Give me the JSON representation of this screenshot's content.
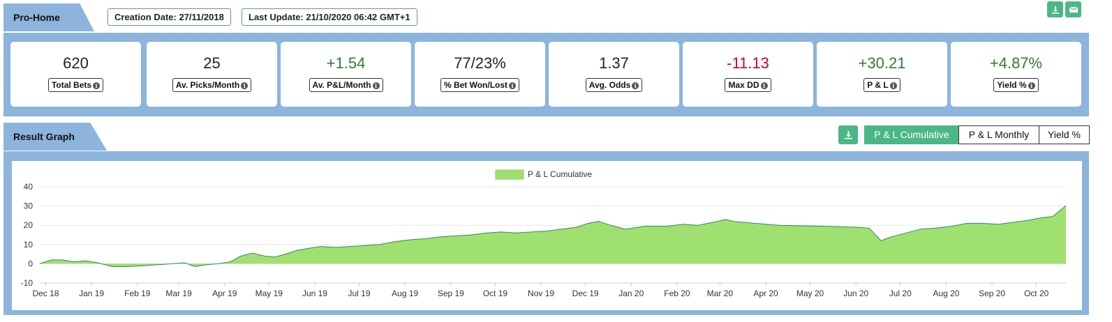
{
  "header": {
    "title": "Pro-Home",
    "creation_date": "Creation Date: 27/11/2018",
    "last_update": "Last Update: 21/10/2020 06:42 GMT+1"
  },
  "icons": {
    "download": "download-icon",
    "email": "envelope-icon",
    "info": "info-circle-icon"
  },
  "stats": [
    {
      "value": "620",
      "label": "Total Bets",
      "color": "#222222"
    },
    {
      "value": "25",
      "label": "Av. Picks/Month",
      "color": "#222222"
    },
    {
      "value": "+1.54",
      "label": "Av. P&L/Month",
      "color": "#2f7d32"
    },
    {
      "value": "77/23%",
      "label": "% Bet Won/Lost",
      "color": "#222222"
    },
    {
      "value": "1.37",
      "label": "Avg. Odds",
      "color": "#222222"
    },
    {
      "value": "-11.13",
      "label": "Max DD",
      "color": "#d0021b"
    },
    {
      "value": "+30.21",
      "label": "P & L",
      "color": "#2f7d32"
    },
    {
      "value": "+4.87%",
      "label": "Yield %",
      "color": "#2f7d32"
    }
  ],
  "graph_section": {
    "title": "Result Graph",
    "toggles": [
      "P & L Cumulative",
      "P & L Monthly",
      "Yield %"
    ],
    "active_toggle": "P & L Cumulative"
  },
  "chart_data": {
    "type": "area",
    "legend": "P & L Cumulative",
    "legend_position": "top-center",
    "fill_color": "#a0e070",
    "line_color": "#2e8b57",
    "ylim": [
      -10,
      40
    ],
    "yticks": [
      "40",
      "30",
      "20",
      "10",
      "0",
      "-10"
    ],
    "xticks": [
      "Dec 18",
      "Jan 19",
      "Feb 19",
      "Mar 19",
      "Apr 19",
      "May 19",
      "Jun 19",
      "Jul 19",
      "Aug 19",
      "Sep 19",
      "Oct 19",
      "Nov 19",
      "Dec 19",
      "Jan 20",
      "Feb 20",
      "Mar 20",
      "Apr 20",
      "May 20",
      "Jun 20",
      "Jul 20",
      "Aug 20",
      "Sep 20",
      "Oct 20"
    ],
    "x": [
      "2018-11-27",
      "2018-12-05",
      "2018-12-12",
      "2018-12-20",
      "2018-12-28",
      "2019-01-05",
      "2019-01-15",
      "2019-01-25",
      "2019-02-05",
      "2019-02-15",
      "2019-02-25",
      "2019-03-05",
      "2019-03-12",
      "2019-03-20",
      "2019-03-28",
      "2019-04-05",
      "2019-04-12",
      "2019-04-20",
      "2019-04-28",
      "2019-05-05",
      "2019-05-12",
      "2019-05-20",
      "2019-05-28",
      "2019-06-05",
      "2019-06-15",
      "2019-06-25",
      "2019-07-05",
      "2019-07-15",
      "2019-07-25",
      "2019-08-05",
      "2019-08-15",
      "2019-08-25",
      "2019-09-05",
      "2019-09-15",
      "2019-09-25",
      "2019-10-05",
      "2019-10-15",
      "2019-10-25",
      "2019-11-05",
      "2019-11-15",
      "2019-11-25",
      "2019-12-03",
      "2019-12-10",
      "2019-12-18",
      "2019-12-28",
      "2020-01-10",
      "2020-01-25",
      "2020-02-05",
      "2020-02-15",
      "2020-02-25",
      "2020-03-05",
      "2020-03-10",
      "2020-04-10",
      "2020-05-10",
      "2020-06-01",
      "2020-06-10",
      "2020-06-18",
      "2020-06-25",
      "2020-07-05",
      "2020-07-15",
      "2020-07-25",
      "2020-08-05",
      "2020-08-15",
      "2020-08-25",
      "2020-09-05",
      "2020-09-15",
      "2020-09-25",
      "2020-10-05",
      "2020-10-12",
      "2020-10-21"
    ],
    "y": [
      0,
      2,
      2,
      1,
      1.5,
      0.5,
      -1.5,
      -1.5,
      -1,
      -0.5,
      0,
      0.5,
      -1.5,
      -0.5,
      0,
      1,
      4,
      5.5,
      4,
      3.5,
      5,
      7,
      8,
      9,
      8.5,
      9,
      9.5,
      10,
      11.5,
      12.5,
      13,
      14,
      14.5,
      15,
      16,
      16.5,
      16,
      16.5,
      17,
      18,
      19,
      21,
      22,
      20,
      18,
      19.5,
      19.5,
      20.5,
      20,
      21.5,
      23,
      22,
      20,
      19.5,
      19,
      18.5,
      12,
      14,
      16,
      18,
      18.5,
      19.5,
      21,
      21,
      20.5,
      21.5,
      22.5,
      24,
      24.5,
      30.2
    ]
  }
}
